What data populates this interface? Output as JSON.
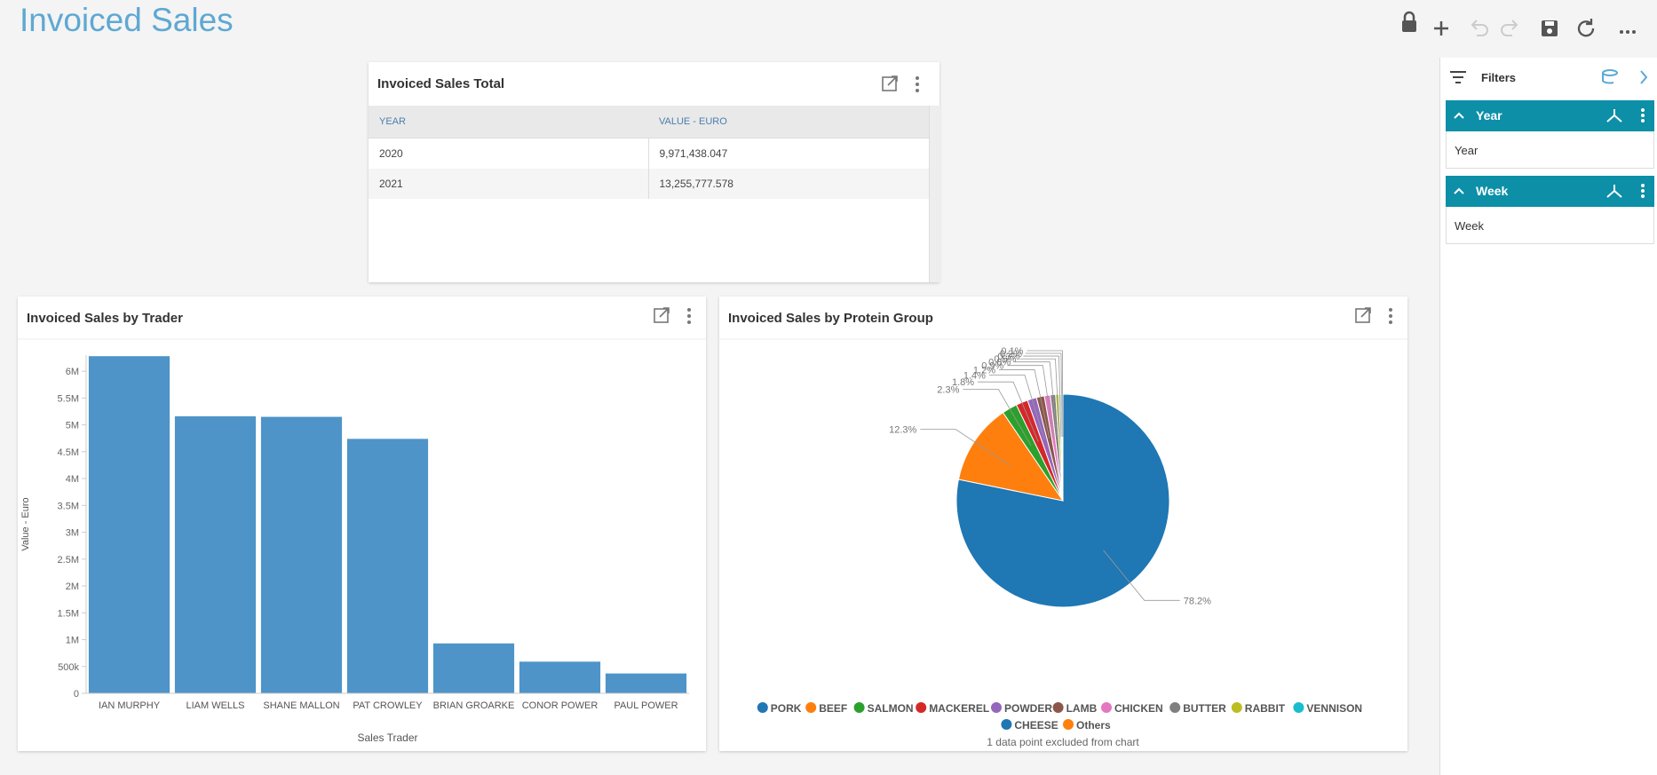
{
  "header": {
    "title": "Invoiced Sales"
  },
  "table_widget": {
    "title": "Invoiced Sales Total",
    "columns": [
      "YEAR",
      "VALUE - EURO"
    ],
    "rows": [
      [
        "2020",
        "9,971,438.047"
      ],
      [
        "2021",
        "13,255,777.578"
      ]
    ]
  },
  "filters": {
    "title": "Filters",
    "items": [
      {
        "name": "Year",
        "placeholder": "Year"
      },
      {
        "name": "Week",
        "placeholder": "Week"
      }
    ]
  },
  "chart_data": [
    {
      "type": "bar",
      "title": "Invoiced Sales by Trader",
      "xlabel": "Sales Trader",
      "ylabel": "Value - Euro",
      "categories": [
        "IAN MURPHY",
        "LIAM WELLS",
        "SHANE MALLON",
        "PAT CROWLEY",
        "BRIAN GROARKE",
        "CONOR POWER",
        "PAUL POWER"
      ],
      "values": [
        6280000,
        5160000,
        5150000,
        4740000,
        930000,
        590000,
        370000
      ],
      "color": "#4e94c8",
      "ylim": [
        0,
        6300000
      ],
      "yticks": [
        0,
        {
          "value": 500000,
          "label": "500k"
        },
        {
          "value": 1000000,
          "label": "1M"
        },
        {
          "value": 1500000,
          "label": "1.5M"
        },
        {
          "value": 2000000,
          "label": "2M"
        },
        {
          "value": 2500000,
          "label": "2.5M"
        },
        {
          "value": 3000000,
          "label": "3M"
        },
        {
          "value": 3500000,
          "label": "3.5M"
        },
        {
          "value": 4000000,
          "label": "4M"
        },
        {
          "value": 4500000,
          "label": "4.5M"
        },
        {
          "value": 5000000,
          "label": "5M"
        },
        {
          "value": 5500000,
          "label": "5.5M"
        },
        {
          "value": 6000000,
          "label": "6M"
        }
      ]
    },
    {
      "type": "pie",
      "title": "Invoiced Sales by Protein Group",
      "categories": [
        "PORK",
        "BEEF",
        "SALMON",
        "MACKEREL",
        "POWDER",
        "LAMB",
        "CHICKEN",
        "BUTTER",
        "RABBIT",
        "VENNISON",
        "CHEESE",
        "Others"
      ],
      "values": [
        78.2,
        12.3,
        2.3,
        1.8,
        1.4,
        1.2,
        0.9,
        0.8,
        0.5,
        0.3,
        0.2,
        0.1
      ],
      "value_labels": [
        "78.2%",
        "12.3%",
        "2.3%",
        "1.8%",
        "1.4%",
        "1.2%",
        "0.9%",
        "0.8%",
        "0.5%",
        "0.3%",
        "0.2%",
        "0.1%"
      ],
      "colors": [
        "#1f77b4",
        "#ff7f0e",
        "#2ca02c",
        "#d62728",
        "#9467bd",
        "#8c564b",
        "#e377c2",
        "#7f7f7f",
        "#bcbd22",
        "#17becf",
        "#1f77b4",
        "#ff7f0e"
      ],
      "legend": "bottom",
      "note": "1 data point excluded from chart"
    }
  ]
}
